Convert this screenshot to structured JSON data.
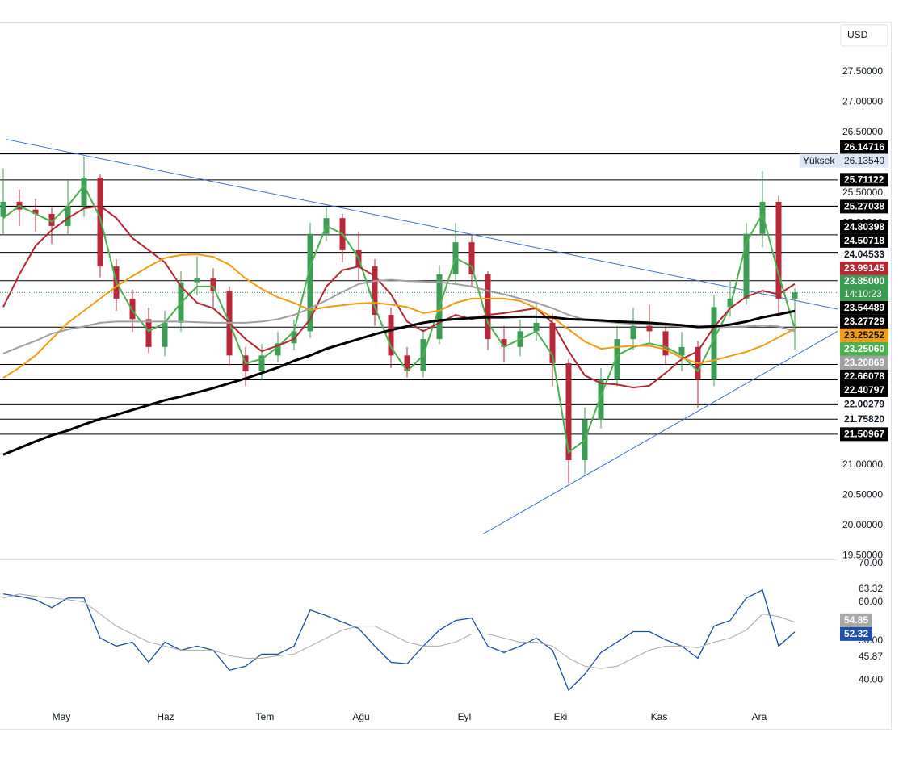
{
  "chart_data": [
    {
      "type": "candlestick",
      "currency": "USD",
      "xlim": [
        -0.2,
        51.65
      ],
      "xticks": [
        {
          "value": 3.6,
          "label": "May"
        },
        {
          "value": 10.05,
          "label": "Haz"
        },
        {
          "value": 16.2,
          "label": "Tem"
        },
        {
          "value": 22.15,
          "label": "Ağu"
        },
        {
          "value": 28.55,
          "label": "Eyl"
        },
        {
          "value": 34.5,
          "label": "Eki"
        },
        {
          "value": 40.6,
          "label": "Kas"
        },
        {
          "value": 46.8,
          "label": "Ara"
        }
      ],
      "ylim": [
        19.44,
        28.31
      ],
      "yticks": [
        {
          "value": 27.5,
          "label": "27.50000"
        },
        {
          "value": 27,
          "label": "27.00000"
        },
        {
          "value": 26.5,
          "label": "26.50000"
        },
        {
          "value": 26,
          "label": "26.00000"
        },
        {
          "value": 25.5,
          "label": "25.50000"
        },
        {
          "value": 25,
          "label": "25.00000"
        },
        {
          "value": 21,
          "label": "21.00000"
        },
        {
          "value": 20.5,
          "label": "20.50000"
        },
        {
          "value": 20,
          "label": "20.00000"
        },
        {
          "value": 19.5,
          "label": "19.50000"
        }
      ],
      "up_color": "#3d9c55",
      "down_color": "#b8283a",
      "ohlc": [
        [
          25.1,
          25.9,
          24.8,
          25.35
        ],
        [
          25.35,
          25.55,
          24.95,
          25.22
        ],
        [
          25.22,
          25.4,
          24.85,
          25.15
        ],
        [
          25.15,
          25.25,
          24.65,
          24.95
        ],
        [
          24.95,
          25.7,
          24.8,
          25.28
        ],
        [
          25.28,
          26.1,
          25.1,
          25.75
        ],
        [
          25.75,
          25.8,
          24.1,
          24.28
        ],
        [
          24.28,
          24.4,
          23.55,
          23.75
        ],
        [
          23.75,
          23.9,
          23.2,
          23.41
        ],
        [
          23.41,
          23.6,
          22.85,
          22.95
        ],
        [
          22.95,
          23.55,
          22.8,
          23.35
        ],
        [
          23.35,
          24.2,
          23.2,
          24.02
        ],
        [
          24.02,
          24.45,
          23.8,
          24.08
        ],
        [
          24.08,
          24.25,
          23.6,
          23.88
        ],
        [
          23.88,
          23.95,
          22.65,
          22.81
        ],
        [
          22.81,
          22.95,
          22.3,
          22.55
        ],
        [
          22.55,
          23.0,
          22.4,
          22.81
        ],
        [
          22.81,
          23.2,
          22.7,
          23.01
        ],
        [
          23.01,
          23.4,
          22.9,
          23.21
        ],
        [
          23.21,
          25.0,
          23.1,
          24.82
        ],
        [
          24.82,
          25.25,
          24.7,
          25.08
        ],
        [
          25.08,
          25.15,
          24.35,
          24.55
        ],
        [
          24.55,
          24.85,
          24.05,
          24.28
        ],
        [
          24.28,
          24.4,
          23.3,
          23.48
        ],
        [
          23.48,
          23.6,
          22.6,
          22.81
        ],
        [
          22.81,
          22.95,
          22.45,
          22.55
        ],
        [
          22.55,
          23.25,
          22.45,
          23.08
        ],
        [
          23.08,
          24.3,
          23.0,
          24.15
        ],
        [
          24.15,
          25.0,
          24.0,
          24.68
        ],
        [
          24.68,
          24.8,
          23.95,
          24.15
        ],
        [
          24.15,
          24.2,
          22.9,
          23.08
        ],
        [
          23.08,
          23.3,
          22.7,
          22.95
        ],
        [
          22.95,
          23.4,
          22.8,
          23.21
        ],
        [
          23.21,
          23.7,
          23.05,
          23.35
        ],
        [
          23.35,
          23.5,
          22.3,
          22.68
        ],
        [
          22.68,
          22.75,
          20.7,
          21.08
        ],
        [
          21.08,
          21.95,
          20.85,
          21.75
        ],
        [
          21.75,
          22.6,
          21.6,
          22.41
        ],
        [
          22.41,
          23.3,
          22.3,
          23.08
        ],
        [
          23.08,
          23.6,
          22.9,
          23.3
        ],
        [
          23.3,
          23.65,
          23.0,
          23.21
        ],
        [
          23.21,
          23.35,
          22.65,
          22.81
        ],
        [
          22.81,
          23.2,
          22.55,
          22.95
        ],
        [
          22.95,
          23.05,
          21.95,
          22.41
        ],
        [
          22.41,
          23.8,
          22.3,
          23.61
        ],
        [
          23.61,
          24.05,
          23.45,
          23.75
        ],
        [
          23.75,
          25.0,
          23.65,
          24.82
        ],
        [
          24.82,
          25.85,
          24.6,
          25.35
        ],
        [
          25.35,
          25.45,
          23.5,
          23.75
        ],
        [
          23.75,
          23.92,
          22.9,
          23.85
        ]
      ],
      "series": [
        {
          "color": "#4caf50",
          "text_color": "#ffffff",
          "last_label": "23.25060",
          "values": [
            25.08,
            25.28,
            25.15,
            25.02,
            25.28,
            25.62,
            25.08,
            24.02,
            23.55,
            23.21,
            23.35,
            23.68,
            23.95,
            23.95,
            23.35,
            22.68,
            22.75,
            22.95,
            23.21,
            24.28,
            24.95,
            24.82,
            24.42,
            23.61,
            22.95,
            22.55,
            22.81,
            23.61,
            24.42,
            24.28,
            23.35,
            22.95,
            23.08,
            23.21,
            22.81,
            21.21,
            21.41,
            22.15,
            22.81,
            22.95,
            23.01,
            22.95,
            22.81,
            22.55,
            23.08,
            23.61,
            24.68,
            25.15,
            24.15,
            23.2506
          ]
        },
        {
          "color": "#b22833",
          "text_color": "#ffffff",
          "last_label": "23.99145",
          "values": [
            23.61,
            24.15,
            24.62,
            24.88,
            25.08,
            25.24,
            25.28,
            25.08,
            24.75,
            24.55,
            24.35,
            23.95,
            23.68,
            23.59,
            23.35,
            23.08,
            22.88,
            22.97,
            23.08,
            23.41,
            23.95,
            24.22,
            24.28,
            24.12,
            23.82,
            23.37,
            23.21,
            23.35,
            23.48,
            23.41,
            23.48,
            23.51,
            23.55,
            23.59,
            23.35,
            22.88,
            22.48,
            22.35,
            22.33,
            22.28,
            22.31,
            22.52,
            22.75,
            22.88,
            23.28,
            23.59,
            23.78,
            23.88,
            23.82,
            23.99145
          ]
        },
        {
          "color": "#f39c12",
          "text_color": "#131722",
          "last_label": "23.25252",
          "values": [
            22.44,
            22.61,
            22.81,
            23.08,
            23.35,
            23.55,
            23.75,
            23.95,
            24.12,
            24.28,
            24.42,
            24.47,
            24.48,
            24.44,
            24.31,
            24.08,
            23.91,
            23.77,
            23.68,
            23.56,
            23.61,
            23.64,
            23.67,
            23.68,
            23.65,
            23.61,
            23.51,
            23.55,
            23.68,
            23.75,
            23.75,
            23.75,
            23.71,
            23.59,
            23.44,
            23.24,
            23.04,
            22.92,
            22.95,
            22.97,
            22.97,
            22.91,
            22.77,
            22.68,
            22.73,
            22.8,
            22.87,
            22.97,
            23.11,
            23.25252
          ]
        },
        {
          "color": "#a0a0a0",
          "text_color": "#ffffff",
          "last_label": "23.20869",
          "values": [
            22.84,
            22.95,
            23.05,
            23.17,
            23.24,
            23.29,
            23.35,
            23.37,
            23.37,
            23.37,
            23.37,
            23.37,
            23.36,
            23.35,
            23.35,
            23.35,
            23.37,
            23.41,
            23.48,
            23.59,
            23.72,
            23.86,
            23.99,
            24.04,
            24.06,
            24.04,
            24.03,
            24.02,
            23.99,
            23.95,
            23.88,
            23.82,
            23.75,
            23.68,
            23.59,
            23.48,
            23.4,
            23.37,
            23.35,
            23.33,
            23.32,
            23.31,
            23.29,
            23.28,
            23.28,
            23.28,
            23.29,
            23.31,
            23.29,
            23.20869
          ]
        },
        {
          "color": "#000000",
          "text_color": "#ffffff",
          "bold": true,
          "last_label": "23.54489",
          "values": [
            21.17,
            21.28,
            21.39,
            21.49,
            21.57,
            21.67,
            21.76,
            21.83,
            21.91,
            21.99,
            22.07,
            22.13,
            22.2,
            22.27,
            22.35,
            22.43,
            22.52,
            22.61,
            22.72,
            22.81,
            22.92,
            23.0,
            23.08,
            23.16,
            23.23,
            23.29,
            23.35,
            23.39,
            23.41,
            23.43,
            23.44,
            23.44,
            23.45,
            23.45,
            23.44,
            23.41,
            23.4,
            23.39,
            23.37,
            23.36,
            23.35,
            23.33,
            23.31,
            23.28,
            23.29,
            23.32,
            23.37,
            23.44,
            23.49,
            23.54489
          ]
        }
      ],
      "levels": [
        {
          "value": 26.14716,
          "label": "26.14716",
          "bold": true,
          "boxed": true
        },
        {
          "value": 25.71122,
          "label": "25.71122",
          "bold": false,
          "boxed": true
        },
        {
          "value": 25.27038,
          "label": "25.27038",
          "bold": true,
          "boxed": true
        },
        {
          "value": 24.80398,
          "label": "24.80398",
          "bold": false,
          "boxed": true
        },
        {
          "value": 24.50718,
          "label": "24.50718",
          "bold": true,
          "boxed": true
        },
        {
          "value": 24.04533,
          "label": "24.04533",
          "bold": false,
          "boxed": false
        },
        {
          "value": 23.27729,
          "label": "23.27729",
          "bold": false,
          "boxed": true
        },
        {
          "value": 22.66078,
          "label": "22.66078",
          "bold": false,
          "boxed": true
        },
        {
          "value": 22.40797,
          "label": "22.40797",
          "bold": false,
          "boxed": true
        },
        {
          "value": 22.00279,
          "label": "22.00279",
          "bold": true,
          "boxed": false
        },
        {
          "value": 21.7582,
          "label": "21.75820",
          "bold": false,
          "boxed": false
        },
        {
          "value": 21.50967,
          "label": "21.50967",
          "bold": false,
          "boxed": true
        }
      ],
      "trendlines": [
        {
          "color": "#3b6fd6",
          "x": [
            0.2,
            51.65
          ],
          "y": [
            26.38,
            23.575
          ]
        },
        {
          "color": "#3b6fd6",
          "x": [
            29.7,
            51.65
          ],
          "y": [
            19.86,
            23.21
          ]
        }
      ],
      "high": {
        "label": "Yüksek",
        "value": 26.1354,
        "value_label": "26.13540"
      },
      "last_price": {
        "value": 23.85,
        "label": "23.85000",
        "countdown": "14:10:23",
        "color": "#3a9c50"
      }
    },
    {
      "type": "line",
      "ylim": [
        33.15,
        70.83
      ],
      "yticks": [
        {
          "value": 70,
          "label": "70.00"
        },
        {
          "value": 63.32,
          "label": "63.32"
        },
        {
          "value": 60,
          "label": "60.00"
        },
        {
          "value": 50,
          "label": "50.00"
        },
        {
          "value": 45.87,
          "label": "45.87"
        },
        {
          "value": 40,
          "label": "40.00"
        }
      ],
      "series": [
        {
          "color": "#1c4fa8",
          "text_color": "#ffffff",
          "last_label": "52.32",
          "values": [
            62.13,
            61.51,
            60.68,
            58.61,
            61.1,
            61.1,
            50.75,
            48.68,
            49.71,
            44.53,
            49.71,
            47.64,
            48.68,
            47.64,
            42.46,
            43.5,
            46.6,
            46.6,
            48.68,
            57.99,
            56.54,
            54.89,
            53.23,
            48.68,
            44.53,
            44.12,
            48.68,
            52.82,
            55.3,
            55.92,
            48.68,
            47.02,
            48.68,
            50.75,
            47.64,
            37.29,
            41.43,
            47.02,
            49.71,
            52.4,
            52.4,
            50.33,
            48.68,
            45.57,
            53.85,
            55.3,
            61.1,
            63.17,
            48.68,
            52.32
          ]
        },
        {
          "color": "#a8a8a8",
          "text_color": "#ffffff",
          "last_label": "54.85",
          "values": [
            61.1,
            62.13,
            61.51,
            61.1,
            60.68,
            60.06,
            56.96,
            53.85,
            51.78,
            49.71,
            48.68,
            47.64,
            47.64,
            47.64,
            46.19,
            45.57,
            45.57,
            46.19,
            46.6,
            48.68,
            50.75,
            52.82,
            53.85,
            53.85,
            51.78,
            49.71,
            48.68,
            48.68,
            49.71,
            51.78,
            51.78,
            50.75,
            49.71,
            49.71,
            48.68,
            45.57,
            43.5,
            42.88,
            43.5,
            45.57,
            47.64,
            48.68,
            48.68,
            48.26,
            49.71,
            50.75,
            52.82,
            56.96,
            56.34,
            54.85
          ]
        }
      ]
    }
  ]
}
